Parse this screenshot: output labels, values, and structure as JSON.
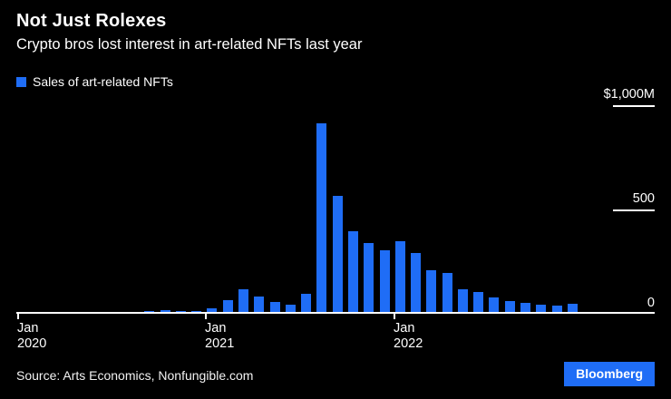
{
  "header": {
    "title": "Not Just Rolexes",
    "subtitle": "Crypto bros lost interest in art-related NFTs last year"
  },
  "legend": {
    "label": "Sales of art-related NFTs"
  },
  "footer": {
    "source": "Source: Arts Economics, Nonfungible.com",
    "logo": "Bloomberg"
  },
  "colors": {
    "background": "#000000",
    "text": "#ffffff",
    "bar": "#1f6df6",
    "logo_bg": "#1f6df6"
  },
  "chart_data": {
    "type": "bar",
    "title": "Not Just Rolexes",
    "subtitle": "Crypto bros lost interest in art-related NFTs last year",
    "series_name": "Sales of art-related NFTs",
    "unit": "$M",
    "ylim": [
      0,
      1000
    ],
    "grid": false,
    "legend_position": "top-left",
    "categories": [
      "Jan 2020",
      "Feb 2020",
      "Mar 2020",
      "Apr 2020",
      "May 2020",
      "Jun 2020",
      "Jul 2020",
      "Aug 2020",
      "Sep 2020",
      "Oct 2020",
      "Nov 2020",
      "Dec 2020",
      "Jan 2021",
      "Feb 2021",
      "Mar 2021",
      "Apr 2021",
      "May 2021",
      "Jun 2021",
      "Jul 2021",
      "Aug 2021",
      "Sep 2021",
      "Oct 2021",
      "Nov 2021",
      "Dec 2021",
      "Jan 2022",
      "Feb 2022",
      "Mar 2022",
      "Apr 2022",
      "May 2022",
      "Jun 2022",
      "Jul 2022",
      "Aug 2022",
      "Sep 2022",
      "Oct 2022",
      "Nov 2022",
      "Dec 2022"
    ],
    "values": [
      3,
      2,
      3,
      2,
      3,
      4,
      3,
      5,
      10,
      12,
      7,
      9,
      20,
      63,
      115,
      80,
      50,
      38,
      90,
      910,
      560,
      390,
      335,
      300,
      345,
      285,
      205,
      190,
      115,
      100,
      72,
      58,
      46,
      40,
      36,
      42
    ],
    "yticks": [
      {
        "value": 0,
        "label": "0"
      },
      {
        "value": 500,
        "label": "500"
      },
      {
        "value": 1000,
        "label": "$1,000M"
      }
    ],
    "xticks": [
      {
        "index": 0,
        "top": "Jan",
        "bottom": "2020"
      },
      {
        "index": 12,
        "top": "Jan",
        "bottom": "2021"
      },
      {
        "index": 24,
        "top": "Jan",
        "bottom": "2022"
      }
    ]
  }
}
